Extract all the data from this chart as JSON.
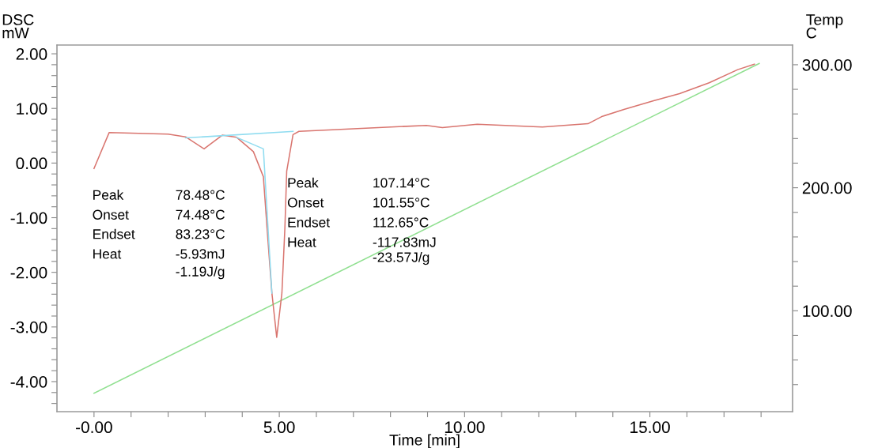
{
  "chart_data": {
    "type": "line",
    "xlabel": "Time [min]",
    "ylabel": "DSC\nmW",
    "y2label": "Temp\nC",
    "xlim": [
      -1.0,
      18.85
    ],
    "ylim": [
      -4.55,
      2.16
    ],
    "y2lim": [
      18,
      316
    ],
    "xticks": [
      {
        "value": 0,
        "label": "-0.00"
      },
      {
        "value": 1,
        "label": null
      },
      {
        "value": 2,
        "label": null
      },
      {
        "value": 3,
        "label": null
      },
      {
        "value": 4,
        "label": null
      },
      {
        "value": 5,
        "label": "5.00"
      },
      {
        "value": 6,
        "label": null
      },
      {
        "value": 7,
        "label": null
      },
      {
        "value": 8,
        "label": null
      },
      {
        "value": 9,
        "label": null
      },
      {
        "value": 10,
        "label": "10.00"
      },
      {
        "value": 11,
        "label": null
      },
      {
        "value": 12,
        "label": null
      },
      {
        "value": 13,
        "label": null
      },
      {
        "value": 14,
        "label": null
      },
      {
        "value": 15,
        "label": "15.00"
      },
      {
        "value": 16,
        "label": null
      },
      {
        "value": 17,
        "label": null
      },
      {
        "value": 18,
        "label": null
      }
    ],
    "yticks": [
      {
        "value": -4.4,
        "label": null
      },
      {
        "value": -4.2,
        "label": null
      },
      {
        "value": -4,
        "label": "-4.00"
      },
      {
        "value": -3.8,
        "label": null
      },
      {
        "value": -3.6,
        "label": null
      },
      {
        "value": -3.4,
        "label": null
      },
      {
        "value": -3.2,
        "label": null
      },
      {
        "value": -3,
        "label": "-3.00"
      },
      {
        "value": -2.8,
        "label": null
      },
      {
        "value": -2.6,
        "label": null
      },
      {
        "value": -2.4,
        "label": null
      },
      {
        "value": -2.2,
        "label": null
      },
      {
        "value": -2,
        "label": "-2.00"
      },
      {
        "value": -1.8,
        "label": null
      },
      {
        "value": -1.6,
        "label": null
      },
      {
        "value": -1.4,
        "label": null
      },
      {
        "value": -1.2,
        "label": null
      },
      {
        "value": -1,
        "label": "-1.00"
      },
      {
        "value": -0.8,
        "label": null
      },
      {
        "value": -0.6,
        "label": null
      },
      {
        "value": -0.4,
        "label": null
      },
      {
        "value": -0.2,
        "label": null
      },
      {
        "value": 0,
        "label": "0.00"
      },
      {
        "value": 0.2,
        "label": null
      },
      {
        "value": 0.4,
        "label": null
      },
      {
        "value": 0.6,
        "label": null
      },
      {
        "value": 0.8,
        "label": null
      },
      {
        "value": 1,
        "label": "1.00"
      },
      {
        "value": 1.2,
        "label": null
      },
      {
        "value": 1.4,
        "label": null
      },
      {
        "value": 1.6,
        "label": null
      },
      {
        "value": 1.8,
        "label": null
      },
      {
        "value": 2,
        "label": "2.00"
      }
    ],
    "y2ticks": [
      {
        "value": 40,
        "label": null
      },
      {
        "value": 60,
        "label": null
      },
      {
        "value": 80,
        "label": null
      },
      {
        "value": 100,
        "label": "100.00"
      },
      {
        "value": 120,
        "label": null
      },
      {
        "value": 140,
        "label": null
      },
      {
        "value": 160,
        "label": null
      },
      {
        "value": 180,
        "label": null
      },
      {
        "value": 200,
        "label": "200.00"
      },
      {
        "value": 220,
        "label": null
      },
      {
        "value": 240,
        "label": null
      },
      {
        "value": 260,
        "label": null
      },
      {
        "value": 280,
        "label": null
      },
      {
        "value": 300,
        "label": "300.00"
      }
    ],
    "grid": false,
    "legend": false,
    "marker": "none",
    "line_style": "solid",
    "series": [
      {
        "color": "#8fdcf0",
        "x": [
          2.47,
          5.37
        ],
        "values": [
          0.46,
          0.58
        ]
      },
      {
        "color": "#8fdcf0",
        "x": [
          3.85,
          4.57,
          4.8
        ],
        "values": [
          0.47,
          0.26,
          -2.38
        ]
      },
      {
        "color": "#90e090",
        "axis": "y2",
        "x": [
          0,
          17.95
        ],
        "values": [
          33,
          301
        ]
      },
      {
        "color": "#d9756f",
        "x": [
          0,
          0.41,
          2.0,
          2.47,
          2.97,
          3.46,
          3.85,
          4.3,
          4.57,
          4.68,
          4.8,
          4.93,
          5.07,
          5.15,
          5.2,
          5.37,
          5.53,
          8.97,
          9.4,
          10.34,
          12.1,
          13.33,
          13.7,
          14.3,
          15.1,
          15.8,
          16.6,
          17.37,
          17.82
        ],
        "values": [
          -0.1,
          0.56,
          0.53,
          0.48,
          0.26,
          0.51,
          0.47,
          0.21,
          -0.25,
          -1.29,
          -2.38,
          -3.19,
          -2.38,
          -1.2,
          -0.15,
          0.52,
          0.58,
          0.69,
          0.65,
          0.71,
          0.66,
          0.72,
          0.85,
          0.98,
          1.14,
          1.27,
          1.47,
          1.71,
          1.81
        ]
      }
    ],
    "annotations": [
      "Peak",
      "78.48°C",
      "Onset",
      "74.48°C",
      "Endset",
      "83.23°C",
      "Heat",
      "-5.93mJ",
      "-1.19J/g",
      "Peak",
      "107.14°C",
      "Onset",
      "101.55°C",
      "Endset",
      "112.65°C",
      "Heat",
      "-117.83mJ",
      "-23.57J/g"
    ]
  }
}
